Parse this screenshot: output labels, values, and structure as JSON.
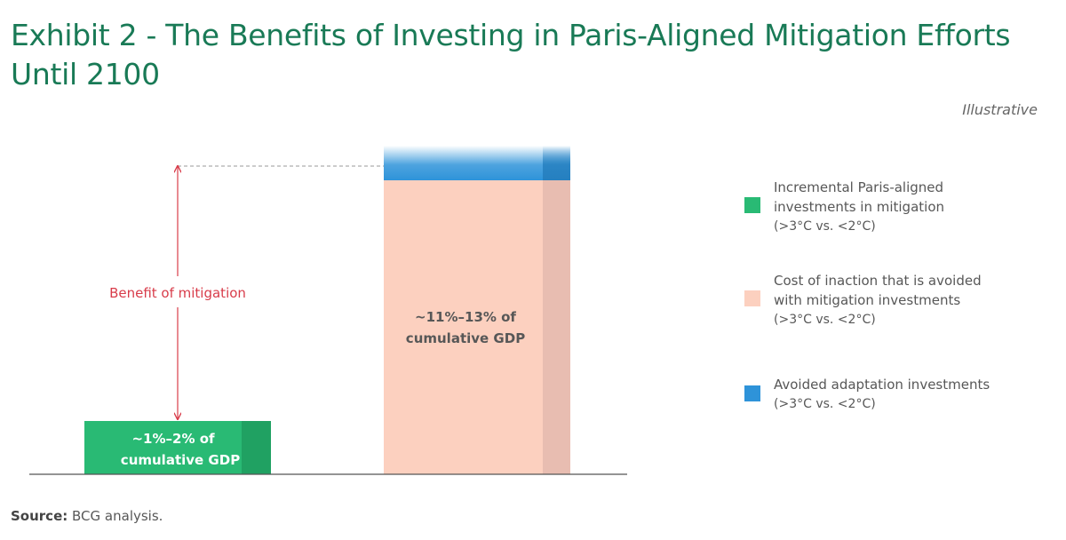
{
  "title": "Exhibit 2 - The Benefits of Investing in Paris-Aligned Mitigation Efforts Until 2100",
  "note": "Illustrative",
  "source": {
    "label": "Source:",
    "text": "BCG analysis."
  },
  "colors": {
    "title": "#197a56",
    "mitigation": "#29ba74",
    "mitigation_shade": "#20a162",
    "inaction": "#fcd0bf",
    "inaction_shade": "#e8bdb1",
    "adaptation": "#2e93d9",
    "adaptation_shade": "#2680c0",
    "benefit": "#d83c4a",
    "axis": "#555555"
  },
  "chart_data": {
    "type": "bar",
    "bars": [
      {
        "value_label": [
          "~1%–2% of",
          "cumulative GDP"
        ],
        "segments": [
          {
            "series": "Incremental Paris-aligned investments in mitigation",
            "value_range": [
              1,
              2
            ]
          }
        ]
      },
      {
        "value_label": [
          "~11%–13% of",
          "cumulative GDP"
        ],
        "segments": [
          {
            "series": "Cost of inaction that is avoided with mitigation investments",
            "value_range": [
              11,
              13
            ]
          },
          {
            "series": "Avoided adaptation investments"
          }
        ]
      }
    ],
    "annotation": "Benefit of mitigation",
    "unit": "% of cumulative GDP",
    "legend": [
      {
        "key": "mitigation",
        "lines": [
          "Incremental Paris-aligned",
          "investments in mitigation",
          "(>3°C vs. <2°C)"
        ]
      },
      {
        "key": "inaction",
        "lines": [
          "Cost of inaction that is avoided",
          "with mitigation investments",
          "(>3°C vs. <2°C)"
        ]
      },
      {
        "key": "adaptation",
        "lines": [
          "Avoided adaptation investments",
          "(>3°C vs. <2°C)"
        ]
      }
    ],
    "legend_position": "right"
  }
}
